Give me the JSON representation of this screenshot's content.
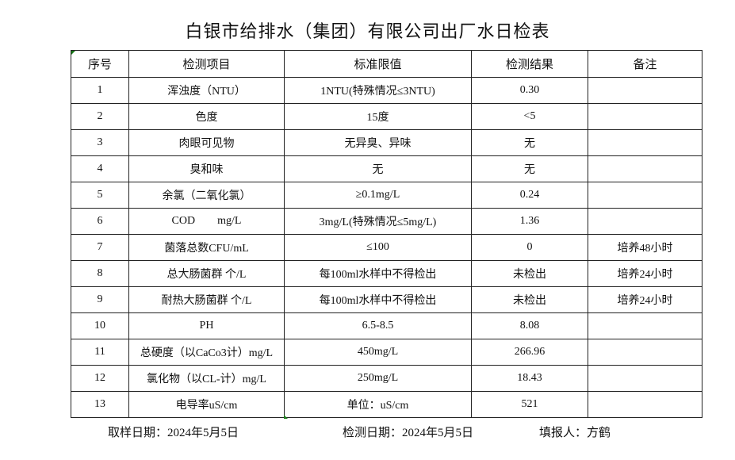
{
  "title": "白银市给排水（集团）有限公司出厂水日检表",
  "table": {
    "headers": [
      "序号",
      "检测项目",
      "标准限值",
      "检测结果",
      "备注"
    ],
    "rows": [
      [
        "1",
        "浑浊度（NTU）",
        "1NTU(特殊情况≤3NTU)",
        "0.30",
        ""
      ],
      [
        "2",
        "色度",
        "15度",
        "<5",
        ""
      ],
      [
        "3",
        "肉眼可见物",
        "无异臭、异味",
        "无",
        ""
      ],
      [
        "4",
        "臭和味",
        "无",
        "无",
        ""
      ],
      [
        "5",
        "余氯（二氧化氯）",
        "≥0.1mg/L",
        "0.24",
        ""
      ],
      [
        "6",
        "COD        mg/L",
        "3mg/L(特殊情况≤5mg/L)",
        "1.36",
        ""
      ],
      [
        "7",
        "菌落总数CFU/mL",
        "≤100",
        "0",
        "培养48小时"
      ],
      [
        "8",
        "总大肠菌群 个/L",
        "每100ml水样中不得检出",
        "未检出",
        "培养24小时"
      ],
      [
        "9",
        "耐热大肠菌群 个/L",
        "每100ml水样中不得检出",
        "未检出",
        "培养24小时"
      ],
      [
        "10",
        "PH",
        "6.5-8.5",
        "8.08",
        ""
      ],
      [
        "11",
        "总硬度（以CaCo3计）mg/L",
        "450mg/L",
        "266.96",
        ""
      ],
      [
        "12",
        "氯化物（以CL-计）mg/L",
        "250mg/L",
        "18.43",
        ""
      ],
      [
        "13",
        "电导率uS/cm",
        "单位：uS/cm",
        "521",
        ""
      ]
    ]
  },
  "footer": {
    "sample_date": "取样日期：2024年5月5日",
    "test_date": "检测日期：2024年5月5日",
    "reporter": "填报人：方鹤"
  }
}
